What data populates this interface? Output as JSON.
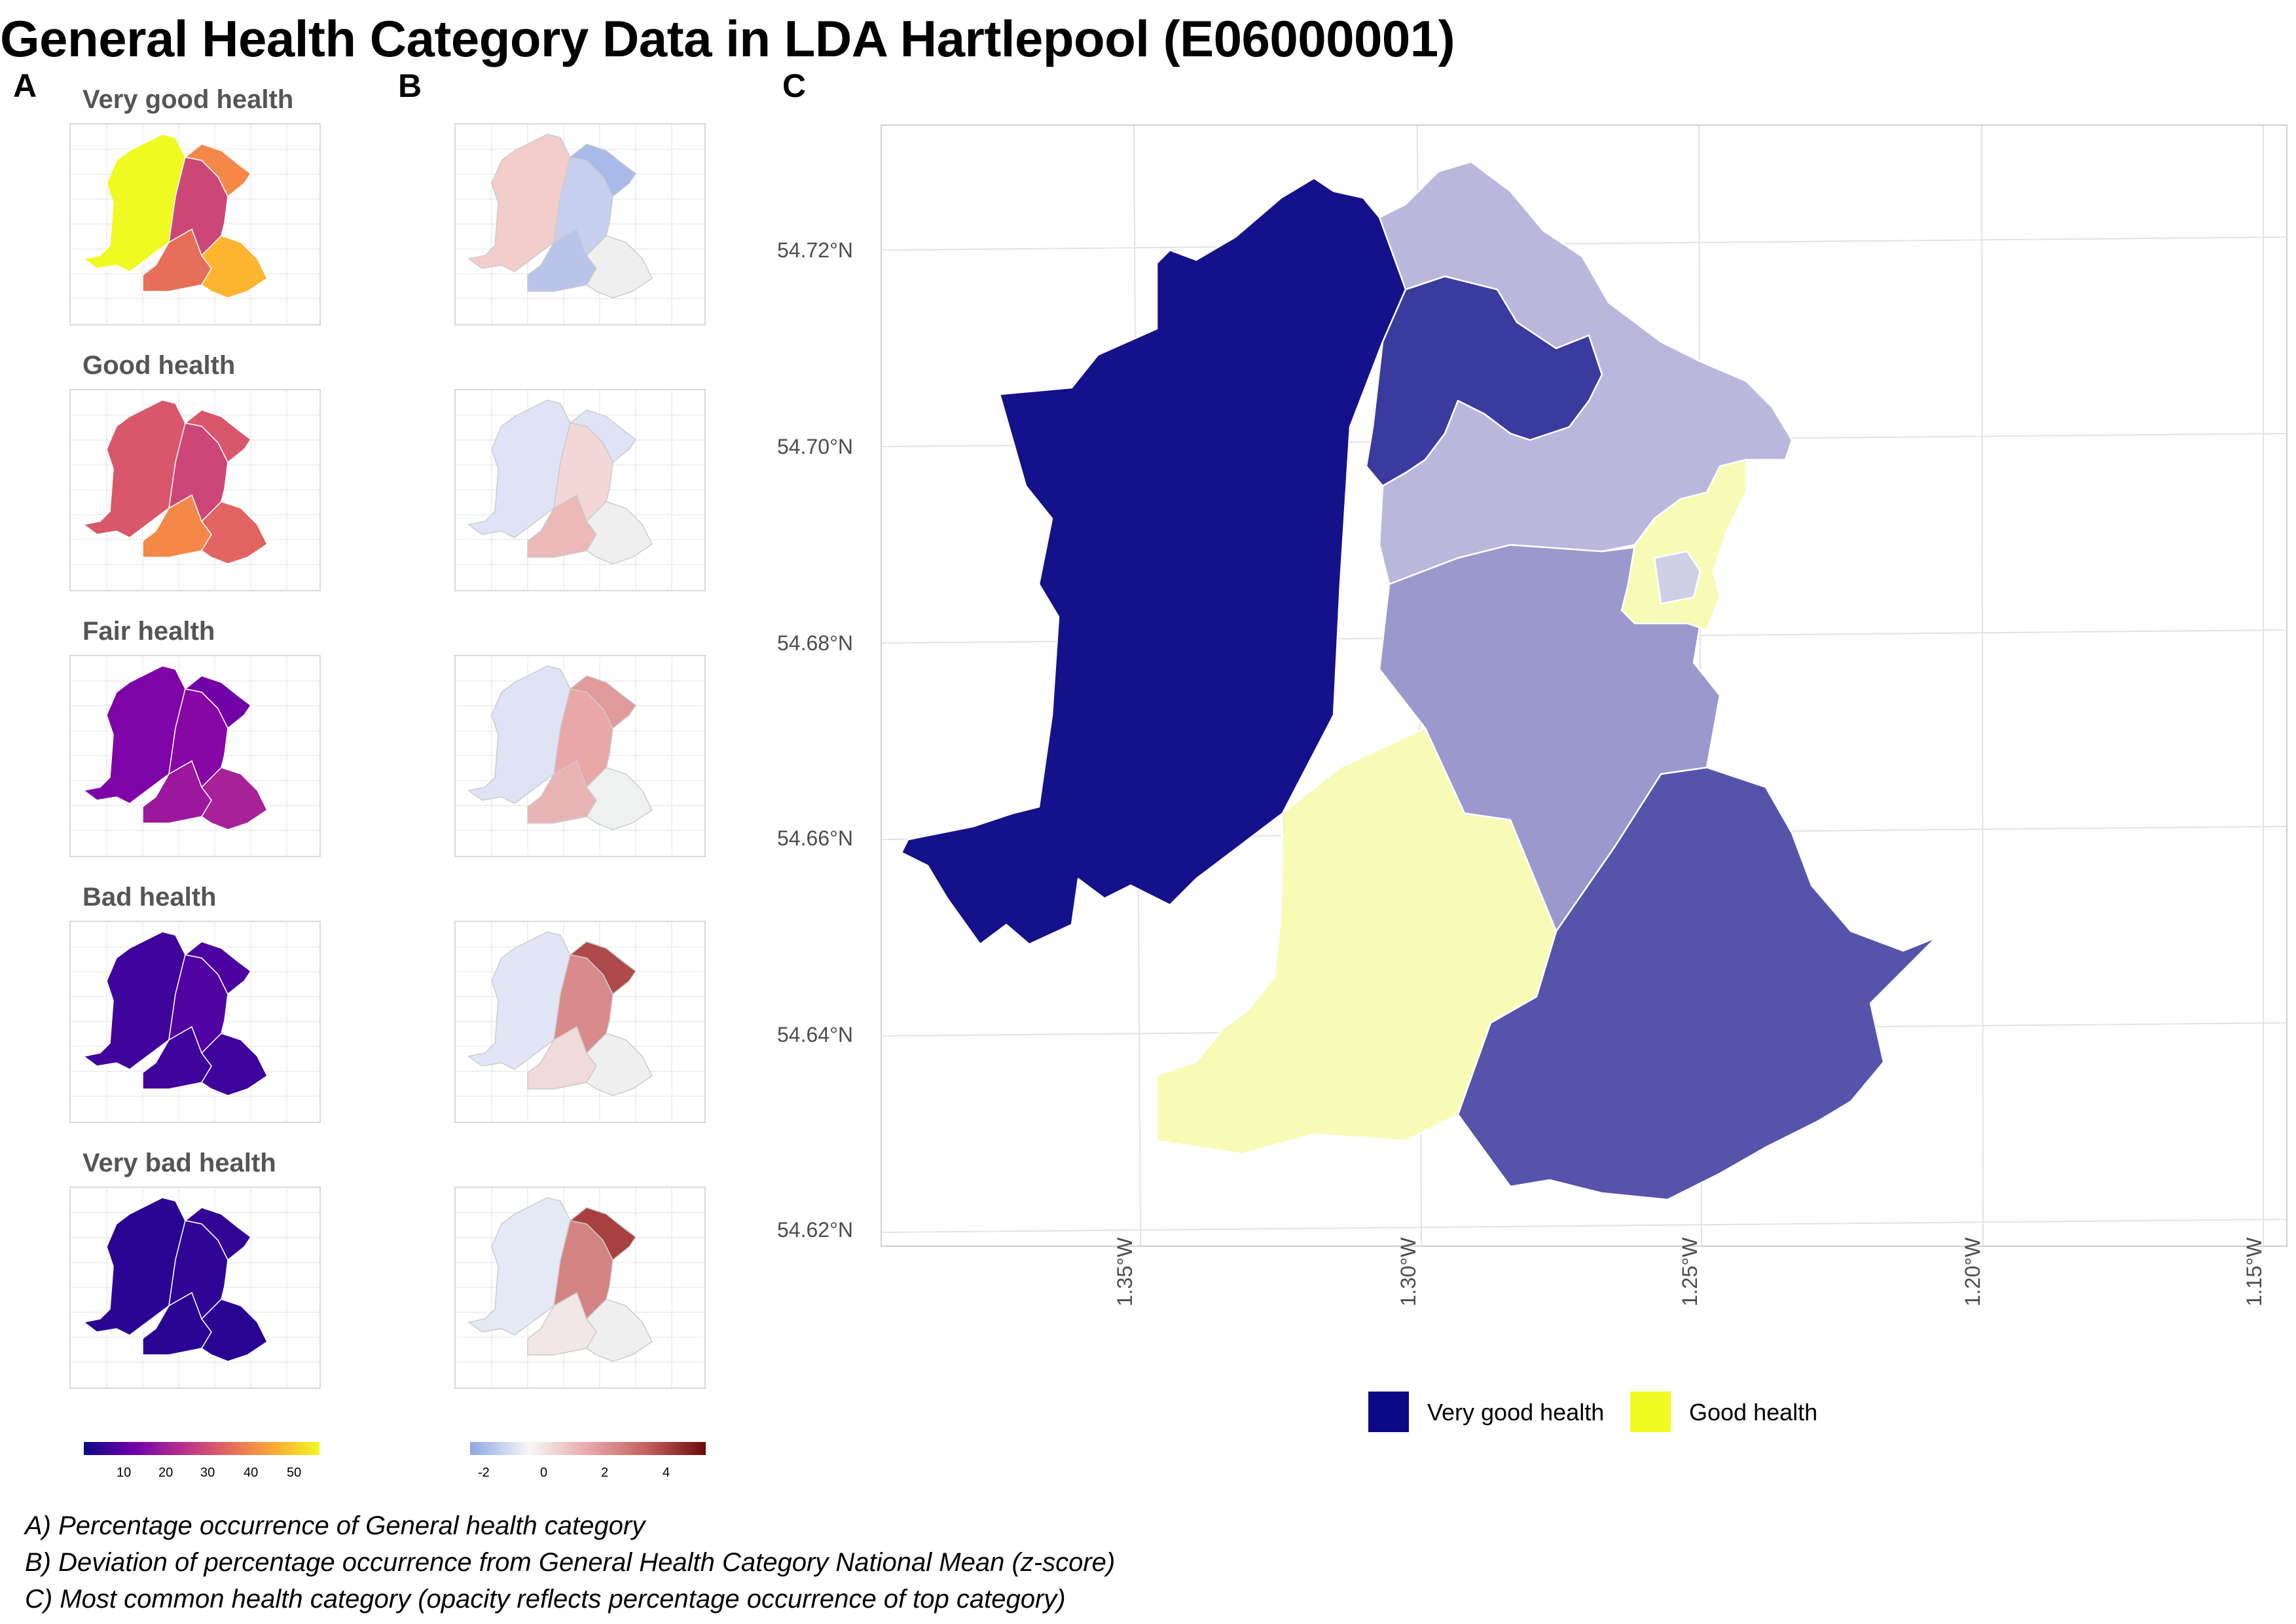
{
  "title": "General Health Category Data in LDA Hartlepool (E06000001)",
  "panel_labels": [
    "A",
    "B",
    "C"
  ],
  "categories": [
    "Very good health",
    "Good health",
    "Fair health",
    "Bad health",
    "Very bad health"
  ],
  "panel_a_fill": [
    "#f0f921",
    "#d8576b",
    "#7e03a8",
    "#3f049c",
    "#2a0593"
  ],
  "panel_a_regions": [
    [
      "#f0f921",
      "#e76f5a",
      "#fdb42f",
      "#cc4778",
      "#f48849"
    ],
    [
      "#d8576b",
      "#f48849",
      "#e16462",
      "#cc4778",
      "#d8576b"
    ],
    [
      "#7e03a8",
      "#9c179e",
      "#a72197",
      "#8707a6",
      "#7201a8"
    ],
    [
      "#3f049c",
      "#3f049c",
      "#3f049c",
      "#5102a3",
      "#4c02a1"
    ],
    [
      "#2a0593",
      "#2a0593",
      "#2a0593",
      "#2f0596",
      "#330597"
    ]
  ],
  "panel_b_regions": [
    [
      "#f3cccc",
      "#b9c4ea",
      "#efefef",
      "#c7cff0",
      "#a9b9ea"
    ],
    [
      "#dfe3f5",
      "#ecb8b8",
      "#efefef",
      "#f3d7d7",
      "#dfe3f5"
    ],
    [
      "#dfe3f5",
      "#eab3b3",
      "#eff1f1",
      "#e9a7a7",
      "#e09a9a"
    ],
    [
      "#e1e5f6",
      "#f1dada",
      "#efefef",
      "#d98a8a",
      "#b04a4a"
    ],
    [
      "#e5e8f5",
      "#f3e6e6",
      "#efefef",
      "#d48383",
      "#a84040"
    ]
  ],
  "colorbar_a": {
    "ticks": [
      "10",
      "20",
      "30",
      "40",
      "50"
    ],
    "stops": [
      "#0d0887",
      "#6a00a8",
      "#b12a90",
      "#e16462",
      "#fca636",
      "#f0f921"
    ]
  },
  "colorbar_b": {
    "ticks": [
      "-2",
      "0",
      "2",
      "4"
    ],
    "stops": [
      "#8fa6e4",
      "#f7f7f7",
      "#e8a9a9",
      "#c56060",
      "#6b0a0a"
    ]
  },
  "main_map": {
    "y_ticks": [
      "54.72°N",
      "54.70°N",
      "54.68°N",
      "54.66°N",
      "54.64°N",
      "54.62°N"
    ],
    "x_ticks": [
      "1.35°W",
      "1.30°W",
      "1.25°W",
      "1.20°W",
      "1.15°W"
    ],
    "region_fill": {
      "west": "#15118a",
      "south_west": "#f7fbb5",
      "south_east": "#5653aa",
      "central": "#9a98cc",
      "north_east": "#b9b8dc",
      "north_inner": "#3b3a9e",
      "coast_harbour": "#f7fbb5",
      "headland": "#cfcfe6"
    }
  },
  "legend": [
    {
      "label": "Very good health",
      "color": "#0d0887"
    },
    {
      "label": "Good health",
      "color": "#f0f921"
    }
  ],
  "captions": [
    "A) Percentage occurrence of General health category",
    "B) Deviation of percentage occurrence from General Health Category National Mean (z-score)",
    "C) Most common health category (opacity reflects percentage occurrence of top category)"
  ]
}
